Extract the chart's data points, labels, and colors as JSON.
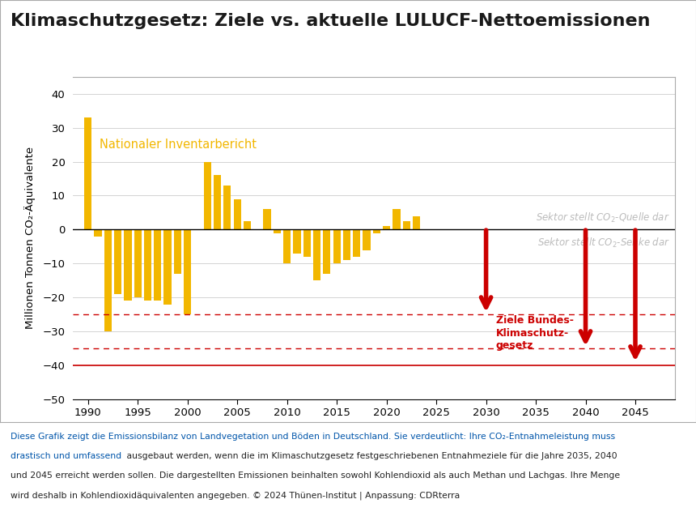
{
  "title": "Klimaschutzgesetz: Ziele vs. aktuelle LULUCF-Nettoemissionen",
  "ylabel": "Millionen Tonnen CO₂-Äquivalente",
  "bar_color": "#F2B700",
  "background_color": "#ffffff",
  "years": [
    1990,
    1991,
    1992,
    1993,
    1994,
    1995,
    1996,
    1997,
    1998,
    1999,
    2000,
    2001,
    2002,
    2003,
    2004,
    2005,
    2006,
    2007,
    2008,
    2009,
    2010,
    2011,
    2012,
    2013,
    2014,
    2015,
    2016,
    2017,
    2018,
    2019,
    2020,
    2021,
    2022,
    2023
  ],
  "values": [
    33,
    -2,
    -30,
    -19,
    -21,
    -20,
    -21,
    -21,
    -22,
    -13,
    -25,
    0,
    20,
    16,
    13,
    9,
    2.5,
    0,
    6,
    -1,
    -10,
    -7,
    -8,
    -15,
    -13,
    -10,
    -9,
    -8,
    -6,
    -1,
    1,
    6,
    2.5,
    4
  ],
  "dashed_line_1": -25,
  "dashed_line_2": -35,
  "solid_line": -40,
  "ylim": [
    -50,
    45
  ],
  "yticks": [
    -50,
    -40,
    -30,
    -20,
    -10,
    0,
    10,
    20,
    30,
    40
  ],
  "xlim": [
    1988.5,
    2049
  ],
  "xticks": [
    1990,
    1995,
    2000,
    2005,
    2010,
    2015,
    2020,
    2025,
    2030,
    2035,
    2040,
    2045
  ],
  "label_inventar": "Nationaler Inventarbericht",
  "label_inventar_color": "#F2B700",
  "label_gray_color": "#BBBBBB",
  "arrow_color": "#CC0000",
  "dashed_color": "#CC0000",
  "solid_color": "#CC0000",
  "border_color": "#AAAAAA",
  "grid_color": "#CCCCCC",
  "fn1_blue": "Diese Grafik zeigt die Emissionsbilanz von Landvegetation und Böden in Deutschland. Sie verdeutlicht: Ihre CO₂-Entnahmeleistung muss",
  "fn2a_blue": "drastisch und umfassend",
  "fn2b_black": " ausgebaut werden, wenn die im Klimaschutzgesetz festgeschriebenen Entnahmeziele für die Jahre 2035, 2040",
  "fn3": "und 2045 erreicht werden sollen. Die dargestellten Emissionen beinhalten sowohl Kohlendioxid als auch Methan und Lachgas. Ihre Menge",
  "fn4": "wird deshalb in Kohlendioxidäquivalenten angegeben. © 2024 Thünen-Institut | Anpassung: CDRterra",
  "fn_color_blue": "#0055AA",
  "fn_color_black": "#222222"
}
